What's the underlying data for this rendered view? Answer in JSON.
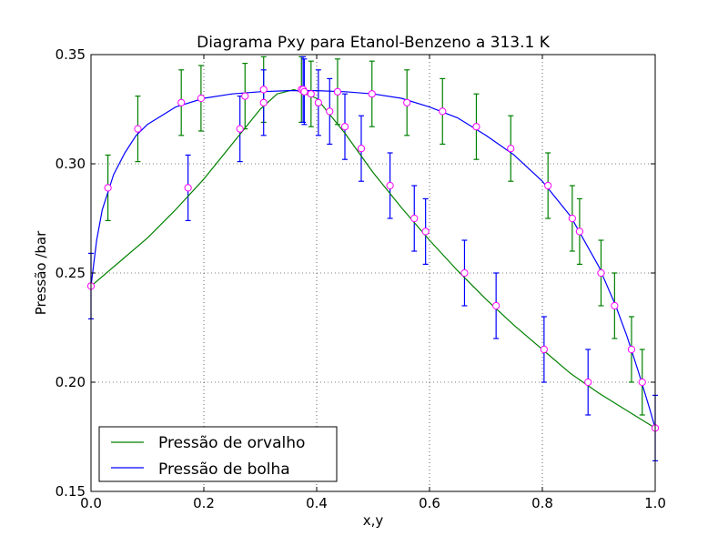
{
  "chart_data": {
    "type": "line",
    "title": "Diagrama Pxy para Etanol-Benzeno a 313.1 K",
    "xlabel": "x,y",
    "ylabel": "Pressão /bar",
    "xlim": [
      0.0,
      1.0
    ],
    "ylim": [
      0.15,
      0.35
    ],
    "xticks": [
      0.0,
      0.2,
      0.4,
      0.6,
      0.8,
      1.0
    ],
    "yticks": [
      0.15,
      0.2,
      0.25,
      0.3,
      0.35
    ],
    "xtick_labels": [
      "0.0",
      "0.2",
      "0.4",
      "0.6",
      "0.8",
      "1.0"
    ],
    "ytick_labels": [
      "0.15",
      "0.20",
      "0.25",
      "0.30",
      "0.35"
    ],
    "grid": true,
    "legend_position": "lower-left",
    "error_bar": 0.015,
    "series": [
      {
        "name": "Pressão de orvalho",
        "color": "#008000",
        "curve": [
          [
            0.0,
            0.244
          ],
          [
            0.05,
            0.255
          ],
          [
            0.1,
            0.266
          ],
          [
            0.15,
            0.279
          ],
          [
            0.2,
            0.293
          ],
          [
            0.25,
            0.309
          ],
          [
            0.3,
            0.325
          ],
          [
            0.33,
            0.332
          ],
          [
            0.36,
            0.334
          ],
          [
            0.4,
            0.33
          ],
          [
            0.45,
            0.314
          ],
          [
            0.5,
            0.296
          ],
          [
            0.55,
            0.28
          ],
          [
            0.6,
            0.265
          ],
          [
            0.65,
            0.251
          ],
          [
            0.7,
            0.238
          ],
          [
            0.75,
            0.226
          ],
          [
            0.8,
            0.215
          ],
          [
            0.85,
            0.204
          ],
          [
            0.9,
            0.195
          ],
          [
            0.95,
            0.187
          ],
          [
            1.0,
            0.179
          ]
        ],
        "points": [
          [
            0.03,
            0.289
          ],
          [
            0.083,
            0.316
          ],
          [
            0.16,
            0.328
          ],
          [
            0.195,
            0.33
          ],
          [
            0.273,
            0.331
          ],
          [
            0.306,
            0.334
          ],
          [
            0.373,
            0.334
          ],
          [
            0.39,
            0.332
          ],
          [
            0.437,
            0.333
          ],
          [
            0.498,
            0.332
          ],
          [
            0.56,
            0.328
          ],
          [
            0.623,
            0.324
          ],
          [
            0.683,
            0.317
          ],
          [
            0.744,
            0.307
          ],
          [
            0.81,
            0.29
          ],
          [
            0.853,
            0.275
          ],
          [
            0.866,
            0.269
          ],
          [
            0.904,
            0.25
          ],
          [
            0.928,
            0.235
          ],
          [
            0.958,
            0.215
          ],
          [
            0.977,
            0.2
          ]
        ]
      },
      {
        "name": "Pressão de bolha",
        "color": "#0000ff",
        "curve": [
          [
            0.0,
            0.244
          ],
          [
            0.01,
            0.265
          ],
          [
            0.02,
            0.279
          ],
          [
            0.04,
            0.295
          ],
          [
            0.06,
            0.305
          ],
          [
            0.08,
            0.313
          ],
          [
            0.1,
            0.318
          ],
          [
            0.15,
            0.326
          ],
          [
            0.2,
            0.33
          ],
          [
            0.25,
            0.332
          ],
          [
            0.3,
            0.333
          ],
          [
            0.35,
            0.3335
          ],
          [
            0.4,
            0.3335
          ],
          [
            0.45,
            0.333
          ],
          [
            0.5,
            0.332
          ],
          [
            0.55,
            0.33
          ],
          [
            0.6,
            0.326
          ],
          [
            0.65,
            0.321
          ],
          [
            0.7,
            0.313
          ],
          [
            0.75,
            0.304
          ],
          [
            0.8,
            0.292
          ],
          [
            0.85,
            0.276
          ],
          [
            0.9,
            0.253
          ],
          [
            0.93,
            0.235
          ],
          [
            0.95,
            0.221
          ],
          [
            0.97,
            0.205
          ],
          [
            0.99,
            0.188
          ],
          [
            1.0,
            0.179
          ]
        ],
        "points": [
          [
            0.0,
            0.244
          ],
          [
            0.172,
            0.289
          ],
          [
            0.264,
            0.316
          ],
          [
            0.306,
            0.328
          ],
          [
            0.376,
            0.334
          ],
          [
            0.378,
            0.333
          ],
          [
            0.403,
            0.328
          ],
          [
            0.423,
            0.324
          ],
          [
            0.45,
            0.317
          ],
          [
            0.479,
            0.307
          ],
          [
            0.53,
            0.29
          ],
          [
            0.573,
            0.275
          ],
          [
            0.593,
            0.269
          ],
          [
            0.662,
            0.25
          ],
          [
            0.718,
            0.235
          ],
          [
            0.803,
            0.215
          ],
          [
            0.881,
            0.2
          ],
          [
            1.0,
            0.179
          ]
        ]
      }
    ]
  }
}
